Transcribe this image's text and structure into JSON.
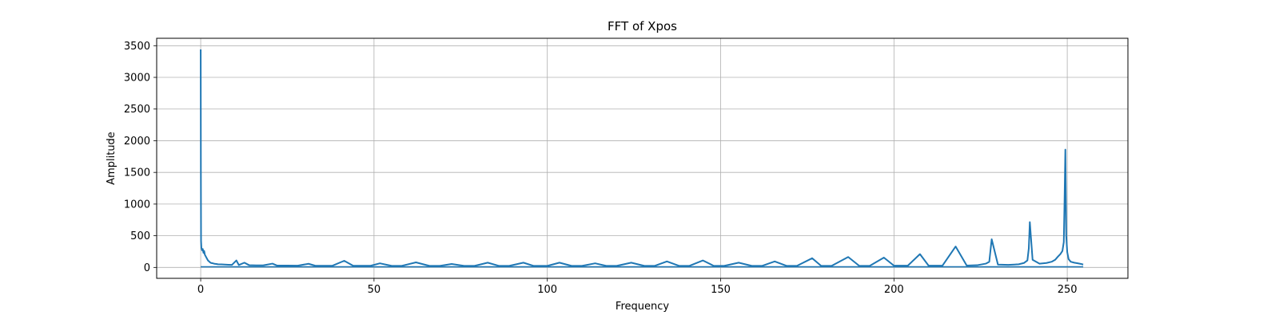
{
  "chart_data": {
    "type": "line",
    "title": "FFT of Xpos",
    "xlabel": "Frequency",
    "ylabel": "Amplitude",
    "xlim": [
      -12.7,
      267.5
    ],
    "ylim": [
      -172,
      3617
    ],
    "xticks": [
      0,
      50,
      100,
      150,
      200,
      250
    ],
    "yticks": [
      0,
      500,
      1000,
      1500,
      2000,
      2500,
      3000,
      3500
    ],
    "grid": true,
    "series_color": "#1f77b4",
    "noise_floor": 20,
    "spectrum_range": [
      0,
      254.6
    ],
    "series": [
      {
        "x": [
          0,
          0.05,
          0.1,
          0.2,
          0.4,
          0.6,
          0.8,
          1.0,
          1.2,
          1.5,
          1.8,
          2.1,
          2.4,
          2.7,
          3.0,
          3.5,
          4.0,
          4.5,
          5.0,
          6.0,
          7.0,
          8.0,
          9.0,
          10.3,
          11.0,
          12.6,
          14.0,
          16.0,
          18.0,
          20.7,
          22.0,
          25.0,
          28.0,
          31.1,
          33.0,
          36.0,
          38.0,
          41.4,
          44.0,
          47.0,
          49.0,
          51.7,
          55.0,
          58.0,
          62.1,
          66.0,
          69.0,
          72.4,
          76.0,
          79.0,
          82.8,
          86.0,
          89.0,
          93.1,
          96.0,
          100.0,
          103.5,
          107.0,
          110.0,
          113.8,
          117.0,
          120.0,
          124.2,
          128.0,
          131.0,
          134.5,
          138.0,
          141.0,
          144.9,
          148.0,
          151.0,
          155.2,
          159.0,
          162.0,
          165.6,
          169.0,
          172.0,
          176.4,
          179.0,
          182.0,
          186.8,
          190.0,
          193.0,
          197.1,
          200.0,
          204.0,
          207.5,
          210.0,
          214.0,
          217.8,
          221.0,
          224.0,
          226.5,
          227.5,
          228.2,
          230.0,
          233.0,
          236.0,
          237.5,
          238.5,
          238.9,
          239.2,
          240.0,
          242.0,
          244.0,
          245.5,
          246.5,
          247.3,
          248.0,
          248.6,
          249.0,
          249.2,
          249.45,
          249.7,
          250.0,
          250.4,
          251.0,
          252.0,
          253.0,
          254.0,
          254.6
        ],
        "y": [
          3440,
          1500,
          420,
          310,
          270,
          290,
          230,
          260,
          200,
          170,
          140,
          110,
          95,
          80,
          70,
          65,
          58,
          55,
          50,
          48,
          45,
          42,
          40,
          110,
          38,
          75,
          35,
          33,
          32,
          60,
          30,
          30,
          28,
          58,
          28,
          27,
          27,
          105,
          27,
          26,
          26,
          65,
          26,
          25,
          80,
          25,
          25,
          55,
          25,
          25,
          75,
          25,
          25,
          75,
          25,
          25,
          75,
          25,
          25,
          65,
          25,
          25,
          75,
          25,
          25,
          95,
          25,
          25,
          110,
          25,
          25,
          75,
          25,
          25,
          95,
          25,
          25,
          145,
          25,
          25,
          165,
          25,
          25,
          155,
          28,
          28,
          210,
          28,
          28,
          330,
          30,
          35,
          60,
          90,
          445,
          45,
          40,
          50,
          70,
          110,
          300,
          715,
          120,
          60,
          70,
          90,
          120,
          170,
          210,
          260,
          400,
          1000,
          1860,
          500,
          240,
          130,
          90,
          75,
          65,
          55,
          45
        ]
      }
    ]
  }
}
